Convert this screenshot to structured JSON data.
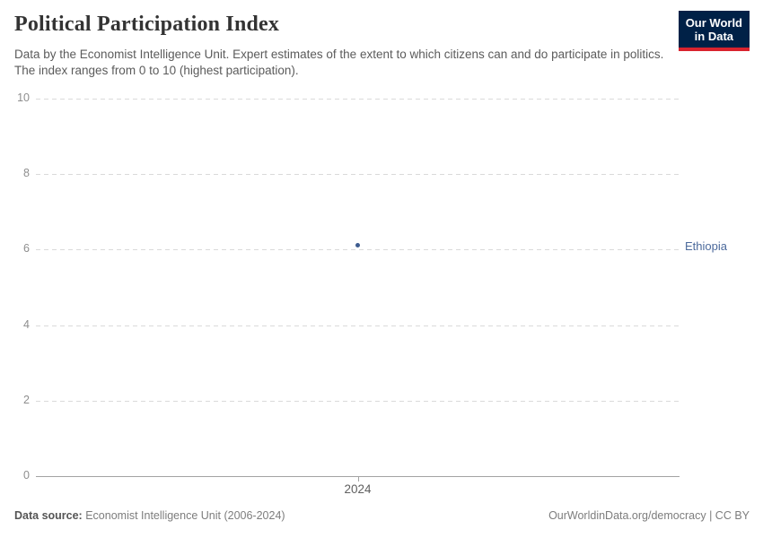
{
  "header": {
    "title": "Political Participation Index",
    "subtitle": "Data by the Economist Intelligence Unit. Expert estimates of the extent to which citizens can and do participate in politics. The index ranges from 0 to 10 (highest participation).",
    "logo": {
      "line1": "Our World",
      "line2": "in Data"
    }
  },
  "chart_data": {
    "type": "scatter",
    "title": "Political Participation Index",
    "xlabel": "",
    "ylabel": "",
    "x_ticks": [
      "2024"
    ],
    "y_ticks": [
      0,
      2,
      4,
      6,
      8,
      10
    ],
    "ylim": [
      0,
      10
    ],
    "grid": "horizontal-dashed",
    "legend_position": "entity-label-right",
    "series": [
      {
        "name": "Ethiopia",
        "color": "#3d5c8f",
        "label_color": "#4c6a9c",
        "x": [
          2024
        ],
        "values": [
          6.11
        ]
      }
    ]
  },
  "footer": {
    "source_label": "Data source:",
    "source_text": " Economist Intelligence Unit (2006-2024)",
    "link_text": "OurWorldinData.org/democracy | CC BY"
  },
  "colors": {
    "logo_bg": "#002147",
    "logo_accent": "#d9232e",
    "grid": "#dadada",
    "axis": "#a3a3a3",
    "y_tick_label": "#8e8e8e",
    "x_tick_label": "#5f5f5f",
    "title": "#333333",
    "subtitle": "#5b5b5b",
    "footer": "#7d7d7d"
  }
}
